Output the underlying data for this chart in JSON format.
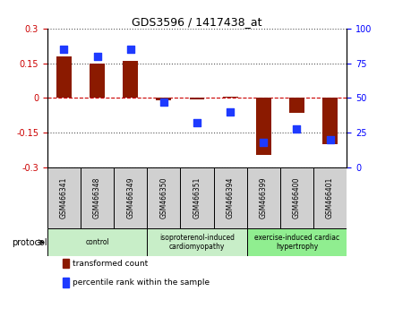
{
  "title": "GDS3596 / 1417438_at",
  "samples": [
    "GSM466341",
    "GSM466348",
    "GSM466349",
    "GSM466350",
    "GSM466351",
    "GSM466394",
    "GSM466399",
    "GSM466400",
    "GSM466401"
  ],
  "transformed_counts": [
    0.18,
    0.15,
    0.16,
    -0.01,
    -0.005,
    0.005,
    -0.245,
    -0.065,
    -0.2
  ],
  "percentile_ranks": [
    85,
    80,
    85,
    47,
    32,
    40,
    18,
    28,
    20
  ],
  "ylim": [
    -0.3,
    0.3
  ],
  "yticks_left": [
    -0.3,
    -0.15,
    0,
    0.15,
    0.3
  ],
  "yticks_right": [
    0,
    25,
    50,
    75,
    100
  ],
  "bar_color": "#8B1A00",
  "dot_color": "#1E3AFF",
  "hline_color": "#CC0000",
  "grid_color": "#555555",
  "protocol_groups": [
    {
      "label": "control",
      "start": 0,
      "end": 3,
      "color": "#C8EEC8"
    },
    {
      "label": "isoproterenol-induced\ncardiomyopathy",
      "start": 3,
      "end": 6,
      "color": "#C8EEC8"
    },
    {
      "label": "exercise-induced cardiac\nhypertrophy",
      "start": 6,
      "end": 9,
      "color": "#90EE90"
    }
  ],
  "legend_items": [
    {
      "label": "transformed count",
      "color": "#8B1A00"
    },
    {
      "label": "percentile rank within the sample",
      "color": "#1E3AFF"
    }
  ],
  "protocol_label": "protocol",
  "bar_width": 0.45,
  "dot_size": 28
}
